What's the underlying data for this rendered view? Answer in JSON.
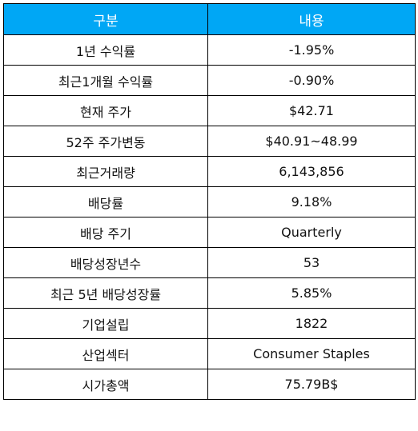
{
  "header": {
    "col1": "구분",
    "col2": "내용"
  },
  "rows": [
    {
      "label": "1년 수익률",
      "value": "-1.95%"
    },
    {
      "label": "최근1개월 수익률",
      "value": "-0.90%"
    },
    {
      "label": "현재 주가",
      "value": "$42.71"
    },
    {
      "label": "52주 주가변동",
      "value": "$40.91~48.99"
    },
    {
      "label": "최근거래량",
      "value": "6,143,856"
    },
    {
      "label": "배당률",
      "value": "9.18%"
    },
    {
      "label": "배당 주기",
      "value": "Quarterly"
    },
    {
      "label": "배당성장년수",
      "value": "53"
    },
    {
      "label": "최근 5년 배당성장률",
      "value": "5.85%"
    },
    {
      "label": "기업설립",
      "value": "1822"
    },
    {
      "label": "산업섹터",
      "value": "Consumer Staples"
    },
    {
      "label": "시가총액",
      "value": "75.79B$"
    }
  ],
  "colors": {
    "header_bg": "#00a7f5",
    "header_text": "#ffffff",
    "border": "#000000"
  }
}
